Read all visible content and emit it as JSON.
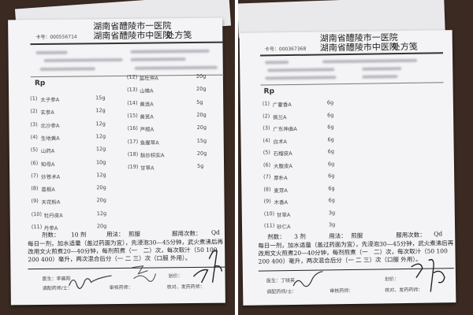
{
  "left": {
    "hospital_line1": "湖南省醴陵市一医院",
    "hospital_line2": "湖南省醴陵市中医院",
    "form_title": "处方笺",
    "card_no": "卡号：000556714",
    "rp": "Rp",
    "items_col1": [
      {
        "no": "(1)",
        "name": "太子参A",
        "dose": "15g"
      },
      {
        "no": "(2)",
        "name": "玄参A",
        "dose": "12g"
      },
      {
        "no": "(3)",
        "name": "北沙参A",
        "dose": "12g"
      },
      {
        "no": "(4)",
        "name": "生地黄A",
        "dose": "12g"
      },
      {
        "no": "(5)",
        "name": "山药A",
        "dose": "12g"
      },
      {
        "no": "(6)",
        "name": "知母A",
        "dose": "10g"
      },
      {
        "no": "(7)",
        "name": "炒苍术A",
        "dose": "12g"
      },
      {
        "no": "(8)",
        "name": "葛根A",
        "dose": "20g"
      },
      {
        "no": "(9)",
        "name": "天花粉A",
        "dose": "20g"
      },
      {
        "no": "(10)",
        "name": "牡丹皮A",
        "dose": "12g"
      },
      {
        "no": "(11)",
        "name": "丹参A",
        "dose": "20g"
      }
    ],
    "items_col2": [
      {
        "no": "(12)",
        "name": "盐杜仲A",
        "dose": "20g"
      },
      {
        "no": "(13)",
        "name": "山楂A",
        "dose": "20g"
      },
      {
        "no": "(14)",
        "name": "黄连A",
        "dose": "5g"
      },
      {
        "no": "(15)",
        "name": "黄芪A",
        "dose": "20g"
      },
      {
        "no": "(16)",
        "name": "芦根A",
        "dose": "20g"
      },
      {
        "no": "(17)",
        "name": "鱼腥草A",
        "dose": "15g"
      },
      {
        "no": "(18)",
        "name": "麸炒枳实A",
        "dose": "20g"
      },
      {
        "no": "(19)",
        "name": "甘草A",
        "dose": "5g"
      }
    ],
    "doses_label": "剂数：",
    "doses_value": "10 剂",
    "usage_label": "用法：",
    "usage_value": "煎服",
    "freq_label": "服用次数：",
    "freq_value": "Qd",
    "instructions": "每日一剂，加水适量（盖过药面为宜），先浸泡30—45分钟，武火煮沸后再改用文火煎煮20—40分钟，每剂煎煮（一　二）次，每次取汁（50 100 200 400）毫升，两次混合后分（一 二 三）次（口服 外用）。",
    "doctor": "医生：李晨阳",
    "pricing": "划价：",
    "dispenser": "调配药师/士：",
    "reviewer": "审核药师：",
    "checker": "核对、发药药师："
  },
  "right": {
    "hospital_line1": "湖南省醴陵市一医院",
    "hospital_line2": "湖南省醴陵市中医院",
    "form_title": "处方笺",
    "card_no": "卡号：000367368",
    "rp": "Rp",
    "items": [
      {
        "no": "(1)",
        "name": "广藿香A",
        "dose": "6g"
      },
      {
        "no": "(2)",
        "name": "佩兰A",
        "dose": "6g"
      },
      {
        "no": "(3)",
        "name": "广东神曲A",
        "dose": "6g"
      },
      {
        "no": "(4)",
        "name": "白术A",
        "dose": "6g"
      },
      {
        "no": "(5)",
        "name": "石榴皮A",
        "dose": "6g"
      },
      {
        "no": "(6)",
        "name": "大腹皮A",
        "dose": "6g"
      },
      {
        "no": "(7)",
        "name": "厚朴A",
        "dose": "6g"
      },
      {
        "no": "(8)",
        "name": "麦芽A",
        "dose": "6g"
      },
      {
        "no": "(9)",
        "name": "木香A",
        "dose": "6g"
      },
      {
        "no": "(10)",
        "name": "甘草A",
        "dose": "3g"
      },
      {
        "no": "(11)",
        "name": "砂仁A",
        "dose": "3g"
      }
    ],
    "doses_label": "剂数：",
    "doses_value": "3 剂",
    "usage_label": "用法：",
    "usage_value": "煎服",
    "freq_label": "服用次数：",
    "freq_value": "Qd",
    "instructions": "每日一剂，加水适量（盖过药面为宜），先浸泡30—45分钟，武火煮沸后再改用文火煎煮20—40分钟，每剂煎煮（一　二）次，每次取汁（50 100 200 400）毫升，两次混合后分（一 二 三）次（口服 外用）。",
    "doctor": "医生：丁晓英",
    "pricing": "划价：",
    "dispenser": "调配药师/士：",
    "reviewer": "审核药师：",
    "checker": "核对、发药药师："
  }
}
